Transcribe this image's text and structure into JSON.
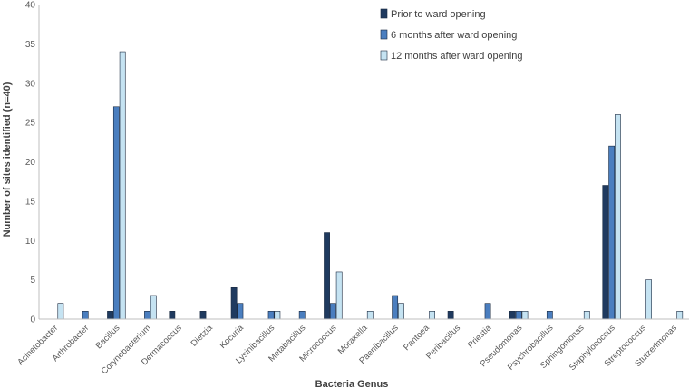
{
  "chart_data": {
    "type": "bar",
    "title": "",
    "xlabel": "Bacteria Genus",
    "ylabel": "Number of sites identified (n=40)",
    "ylim": [
      0,
      40
    ],
    "yticks": [
      0,
      5,
      10,
      15,
      20,
      25,
      30,
      35,
      40
    ],
    "grid": false,
    "legend_position": "top-right",
    "categories": [
      "Acinetobacter",
      "Arthrobacter",
      "Bacillus",
      "Corynebacterium",
      "Dermacoccus",
      "Dietzia",
      "Kocuria",
      "Lysinibacillus",
      "Metabacillus",
      "Micrococcus",
      "Moraxella",
      "Paenibacillus",
      "Pantoea",
      "Peribacillus",
      "Priestia",
      "Pseudomonas",
      "Psychrobacillus",
      "Sphingomonas",
      "Staphylococcus",
      "Streptococcus",
      "Stutzerimonas"
    ],
    "series": [
      {
        "name": "Prior to ward opening",
        "color": "#1f3a5f",
        "values": [
          0,
          0,
          1,
          0,
          1,
          1,
          4,
          0,
          0,
          11,
          0,
          0,
          0,
          1,
          0,
          1,
          0,
          0,
          17,
          0,
          0
        ]
      },
      {
        "name": "6 months after ward opening",
        "color": "#4a7ebf",
        "values": [
          0,
          1,
          27,
          1,
          0,
          0,
          2,
          1,
          1,
          2,
          0,
          3,
          0,
          0,
          2,
          1,
          1,
          0,
          22,
          0,
          0
        ]
      },
      {
        "name": "12 months after ward opening",
        "color": "#c5e3f2",
        "values": [
          2,
          0,
          34,
          3,
          0,
          0,
          0,
          1,
          0,
          6,
          1,
          2,
          1,
          0,
          0,
          1,
          0,
          1,
          26,
          5,
          1
        ]
      }
    ]
  }
}
